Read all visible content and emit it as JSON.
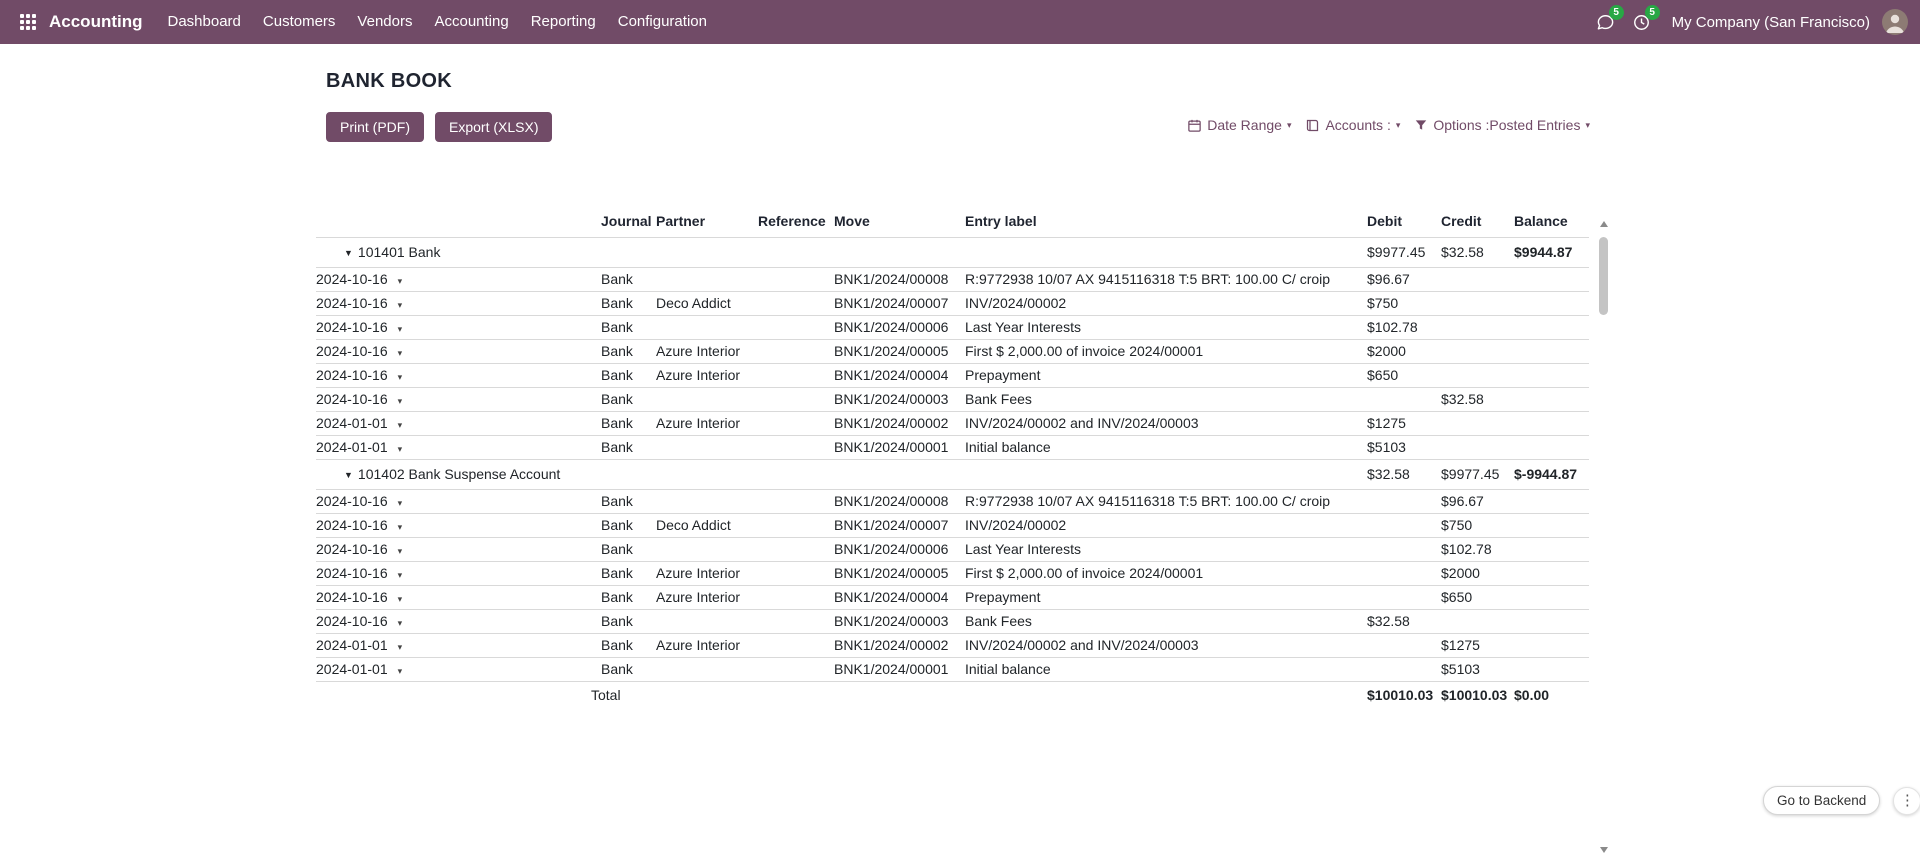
{
  "colors": {
    "accent": "#714B67",
    "badge_green": "#28a745"
  },
  "icons": {
    "chevron_down": "▾",
    "collapse_caret": "▼",
    "kebab_menu": "⋮"
  },
  "nav": {
    "brand": "Accounting",
    "items": [
      "Dashboard",
      "Customers",
      "Vendors",
      "Accounting",
      "Reporting",
      "Configuration"
    ],
    "messages_badge": "5",
    "activities_badge": "5",
    "company": "My Company (San Francisco)"
  },
  "report": {
    "title": "BANK BOOK",
    "buttons": {
      "print": "Print (PDF)",
      "export": "Export (XLSX)"
    },
    "filters": {
      "date_range_label": "Date Range",
      "accounts_label": "Accounts :",
      "options_label": "Options :",
      "options_value": "Posted Entries"
    },
    "backend_button": "Go to Backend"
  },
  "table": {
    "headers": {
      "date": "",
      "journal": "Journal",
      "partner": "Partner",
      "reference": "Reference",
      "move": "Move",
      "entry_label": "Entry label",
      "debit": "Debit",
      "credit": "Credit",
      "balance": "Balance"
    },
    "groups": [
      {
        "name": "101401 Bank",
        "debit": "$9977.45",
        "credit": "$32.58",
        "balance": "$9944.87",
        "rows": [
          {
            "date": "2024-10-16",
            "journal": "Bank",
            "partner": "",
            "reference": "",
            "move": "BNK1/2024/00008",
            "label": "R:9772938 10/07 AX 9415116318 T:5 BRT: 100.00 C/ croip",
            "debit": "$96.67",
            "credit": "",
            "balance": ""
          },
          {
            "date": "2024-10-16",
            "journal": "Bank",
            "partner": "Deco Addict",
            "reference": "",
            "move": "BNK1/2024/00007",
            "label": "INV/2024/00002",
            "debit": "$750",
            "credit": "",
            "balance": ""
          },
          {
            "date": "2024-10-16",
            "journal": "Bank",
            "partner": "",
            "reference": "",
            "move": "BNK1/2024/00006",
            "label": "Last Year Interests",
            "debit": "$102.78",
            "credit": "",
            "balance": ""
          },
          {
            "date": "2024-10-16",
            "journal": "Bank",
            "partner": "Azure Interior",
            "reference": "",
            "move": "BNK1/2024/00005",
            "label": "First $ 2,000.00 of invoice 2024/00001",
            "debit": "$2000",
            "credit": "",
            "balance": ""
          },
          {
            "date": "2024-10-16",
            "journal": "Bank",
            "partner": "Azure Interior",
            "reference": "",
            "move": "BNK1/2024/00004",
            "label": "Prepayment",
            "debit": "$650",
            "credit": "",
            "balance": ""
          },
          {
            "date": "2024-10-16",
            "journal": "Bank",
            "partner": "",
            "reference": "",
            "move": "BNK1/2024/00003",
            "label": "Bank Fees",
            "debit": "",
            "credit": "$32.58",
            "balance": ""
          },
          {
            "date": "2024-01-01",
            "journal": "Bank",
            "partner": "Azure Interior",
            "reference": "",
            "move": "BNK1/2024/00002",
            "label": "INV/2024/00002 and INV/2024/00003",
            "debit": "$1275",
            "credit": "",
            "balance": ""
          },
          {
            "date": "2024-01-01",
            "journal": "Bank",
            "partner": "",
            "reference": "",
            "move": "BNK1/2024/00001",
            "label": "Initial balance",
            "debit": "$5103",
            "credit": "",
            "balance": ""
          }
        ]
      },
      {
        "name": "101402 Bank Suspense Account",
        "debit": "$32.58",
        "credit": "$9977.45",
        "balance": "$-9944.87",
        "rows": [
          {
            "date": "2024-10-16",
            "journal": "Bank",
            "partner": "",
            "reference": "",
            "move": "BNK1/2024/00008",
            "label": "R:9772938 10/07 AX 9415116318 T:5 BRT: 100.00 C/ croip",
            "debit": "",
            "credit": "$96.67",
            "balance": ""
          },
          {
            "date": "2024-10-16",
            "journal": "Bank",
            "partner": "Deco Addict",
            "reference": "",
            "move": "BNK1/2024/00007",
            "label": "INV/2024/00002",
            "debit": "",
            "credit": "$750",
            "balance": ""
          },
          {
            "date": "2024-10-16",
            "journal": "Bank",
            "partner": "",
            "reference": "",
            "move": "BNK1/2024/00006",
            "label": "Last Year Interests",
            "debit": "",
            "credit": "$102.78",
            "balance": ""
          },
          {
            "date": "2024-10-16",
            "journal": "Bank",
            "partner": "Azure Interior",
            "reference": "",
            "move": "BNK1/2024/00005",
            "label": "First $ 2,000.00 of invoice 2024/00001",
            "debit": "",
            "credit": "$2000",
            "balance": ""
          },
          {
            "date": "2024-10-16",
            "journal": "Bank",
            "partner": "Azure Interior",
            "reference": "",
            "move": "BNK1/2024/00004",
            "label": "Prepayment",
            "debit": "",
            "credit": "$650",
            "balance": ""
          },
          {
            "date": "2024-10-16",
            "journal": "Bank",
            "partner": "",
            "reference": "",
            "move": "BNK1/2024/00003",
            "label": "Bank Fees",
            "debit": "$32.58",
            "credit": "",
            "balance": ""
          },
          {
            "date": "2024-01-01",
            "journal": "Bank",
            "partner": "Azure Interior",
            "reference": "",
            "move": "BNK1/2024/00002",
            "label": "INV/2024/00002 and INV/2024/00003",
            "debit": "",
            "credit": "$1275",
            "balance": ""
          },
          {
            "date": "2024-01-01",
            "journal": "Bank",
            "partner": "",
            "reference": "",
            "move": "BNK1/2024/00001",
            "label": "Initial balance",
            "debit": "",
            "credit": "$5103",
            "balance": ""
          }
        ]
      }
    ],
    "total": {
      "label": "Total",
      "debit": "$10010.03",
      "credit": "$10010.03",
      "balance": "$0.00"
    }
  }
}
